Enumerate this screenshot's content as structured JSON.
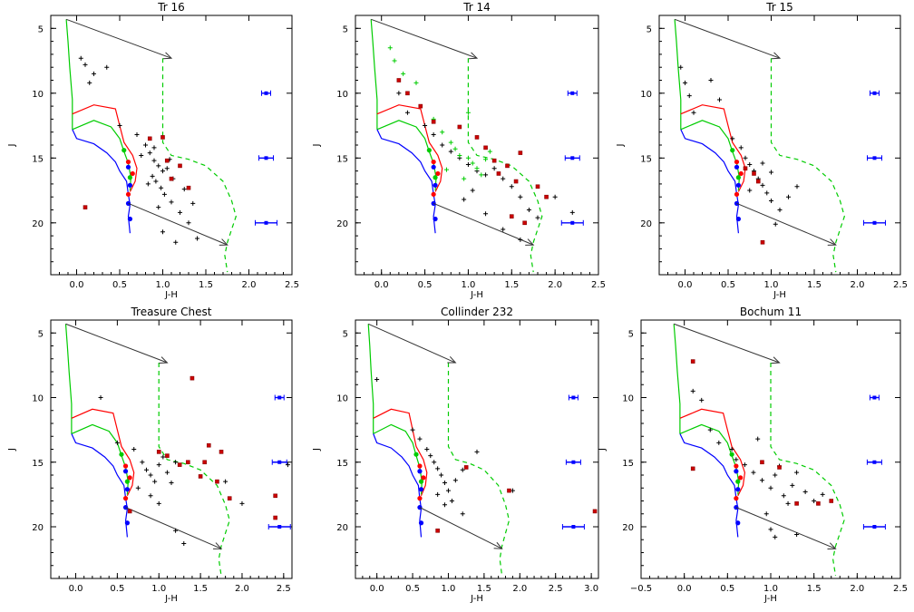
{
  "figure": {
    "panels": [
      {
        "title": "Tr 16"
      },
      {
        "title": "Tr 14"
      },
      {
        "title": "Tr 15"
      },
      {
        "title": "Treasure Chest"
      },
      {
        "title": "Collinder 232"
      },
      {
        "title": "Bochum 11"
      }
    ]
  },
  "colors": {
    "black": "#000000",
    "red": "#ff0000",
    "green": "#00cc00",
    "blue": "#0000ff",
    "dark_red": "#cc0000"
  },
  "chart_data": [
    {
      "type": "scatter",
      "title": "Tr 16",
      "xlabel": "J-H",
      "ylabel": "J",
      "xlim": [
        -0.3,
        2.5
      ],
      "ylim": [
        24,
        4
      ],
      "xticks": [
        "0.0",
        "0.5",
        "1.0",
        "1.5",
        "2.0",
        "2.5"
      ],
      "yticks": [
        "5",
        "10",
        "15",
        "20"
      ],
      "series": [
        {
          "marker": "plus",
          "color": "#000000",
          "points": [
            [
              0.05,
              7.3
            ],
            [
              0.1,
              7.8
            ],
            [
              0.2,
              8.5
            ],
            [
              0.15,
              9.2
            ],
            [
              0.35,
              8.0
            ],
            [
              0.5,
              12.5
            ],
            [
              0.7,
              13.2
            ],
            [
              0.8,
              14.0
            ],
            [
              0.85,
              14.6
            ],
            [
              0.9,
              15.2
            ],
            [
              0.95,
              15.6
            ],
            [
              1.0,
              16.0
            ],
            [
              1.05,
              15.8
            ],
            [
              0.88,
              16.4
            ],
            [
              0.92,
              16.8
            ],
            [
              0.98,
              17.3
            ],
            [
              1.02,
              17.8
            ],
            [
              1.1,
              18.4
            ],
            [
              1.2,
              19.2
            ],
            [
              1.3,
              20.0
            ],
            [
              1.0,
              20.7
            ],
            [
              1.15,
              21.5
            ],
            [
              0.9,
              14.2
            ],
            [
              0.75,
              14.8
            ],
            [
              1.08,
              15.1
            ],
            [
              0.83,
              17.0
            ],
            [
              1.12,
              16.6
            ],
            [
              1.25,
              17.4
            ],
            [
              1.35,
              18.5
            ],
            [
              0.95,
              18.8
            ],
            [
              1.4,
              21.2
            ]
          ]
        },
        {
          "marker": "square",
          "color": "#cc0000",
          "points": [
            [
              0.1,
              18.8
            ],
            [
              0.85,
              13.5
            ],
            [
              1.0,
              13.4
            ],
            [
              1.05,
              15.2
            ],
            [
              1.2,
              15.6
            ],
            [
              1.1,
              16.6
            ],
            [
              1.3,
              17.3
            ]
          ]
        }
      ]
    },
    {
      "type": "scatter",
      "title": "Tr 14",
      "xlabel": "J-H",
      "ylabel": "J",
      "xlim": [
        -0.3,
        2.5
      ],
      "ylim": [
        24,
        4
      ],
      "xticks": [
        "0.0",
        "0.5",
        "1.0",
        "1.5",
        "2.0",
        "2.5"
      ],
      "yticks": [
        "5",
        "10",
        "15",
        "20"
      ],
      "series": [
        {
          "marker": "plus",
          "color": "#000000",
          "points": [
            [
              0.2,
              10.0
            ],
            [
              0.3,
              11.5
            ],
            [
              0.5,
              12.5
            ],
            [
              0.6,
              13.2
            ],
            [
              0.7,
              14.0
            ],
            [
              0.8,
              14.5
            ],
            [
              0.9,
              15.0
            ],
            [
              1.0,
              15.5
            ],
            [
              1.1,
              16.0
            ],
            [
              1.2,
              16.3
            ],
            [
              1.3,
              15.8
            ],
            [
              1.4,
              16.6
            ],
            [
              1.5,
              17.2
            ],
            [
              1.6,
              18.0
            ],
            [
              1.7,
              19.0
            ],
            [
              1.8,
              19.6
            ],
            [
              0.95,
              18.2
            ],
            [
              1.05,
              17.5
            ],
            [
              1.2,
              19.3
            ],
            [
              1.4,
              20.5
            ],
            [
              1.6,
              21.3
            ],
            [
              2.0,
              18.0
            ],
            [
              2.2,
              19.2
            ]
          ]
        },
        {
          "marker": "plus",
          "color": "#00cc00",
          "points": [
            [
              0.1,
              6.5
            ],
            [
              0.15,
              7.5
            ],
            [
              0.25,
              8.5
            ],
            [
              0.4,
              9.2
            ],
            [
              0.6,
              12.0
            ],
            [
              0.7,
              13.0
            ],
            [
              0.8,
              13.8
            ],
            [
              0.85,
              14.3
            ],
            [
              0.9,
              14.8
            ],
            [
              1.0,
              15.0
            ],
            [
              1.05,
              15.4
            ],
            [
              1.1,
              15.8
            ],
            [
              1.15,
              16.3
            ],
            [
              0.95,
              16.6
            ],
            [
              1.2,
              15.1
            ],
            [
              1.25,
              14.5
            ],
            [
              0.75,
              15.9
            ],
            [
              1.0,
              11.5
            ]
          ]
        },
        {
          "marker": "square",
          "color": "#cc0000",
          "points": [
            [
              0.2,
              9.0
            ],
            [
              0.3,
              10.0
            ],
            [
              0.45,
              11.0
            ],
            [
              0.6,
              12.2
            ],
            [
              0.9,
              12.6
            ],
            [
              1.1,
              13.4
            ],
            [
              1.2,
              14.2
            ],
            [
              1.3,
              15.2
            ],
            [
              1.35,
              16.2
            ],
            [
              1.45,
              15.6
            ],
            [
              1.55,
              16.8
            ],
            [
              1.6,
              14.6
            ],
            [
              1.8,
              17.2
            ],
            [
              1.9,
              18.0
            ],
            [
              1.5,
              19.5
            ],
            [
              1.65,
              20.0
            ]
          ]
        }
      ]
    },
    {
      "type": "scatter",
      "title": "Tr 15",
      "xlabel": "J-H",
      "ylabel": "J",
      "xlim": [
        -0.3,
        2.5
      ],
      "ylim": [
        24,
        4
      ],
      "xticks": [
        "0.0",
        "0.5",
        "1.0",
        "1.5",
        "2.0",
        "2.5"
      ],
      "yticks": [
        "5",
        "10",
        "15",
        "20"
      ],
      "series": [
        {
          "marker": "plus",
          "color": "#000000",
          "points": [
            [
              -0.05,
              8.0
            ],
            [
              0.0,
              9.2
            ],
            [
              0.05,
              10.2
            ],
            [
              0.1,
              11.5
            ],
            [
              0.3,
              9.0
            ],
            [
              0.4,
              10.5
            ],
            [
              0.55,
              13.5
            ],
            [
              0.65,
              14.2
            ],
            [
              0.7,
              15.0
            ],
            [
              0.75,
              15.5
            ],
            [
              0.8,
              16.0
            ],
            [
              0.85,
              16.6
            ],
            [
              0.9,
              17.1
            ],
            [
              0.95,
              17.7
            ],
            [
              1.0,
              18.3
            ],
            [
              1.1,
              19.0
            ],
            [
              1.2,
              18.0
            ],
            [
              1.3,
              17.2
            ],
            [
              0.75,
              17.5
            ],
            [
              0.9,
              15.4
            ],
            [
              1.0,
              16.1
            ],
            [
              1.05,
              20.1
            ]
          ]
        },
        {
          "marker": "square",
          "color": "#cc0000",
          "points": [
            [
              0.7,
              15.8
            ],
            [
              0.8,
              16.2
            ],
            [
              0.85,
              16.8
            ],
            [
              0.9,
              21.5
            ]
          ]
        }
      ]
    },
    {
      "type": "scatter",
      "title": "Treasure Chest",
      "xlabel": "J-H",
      "ylabel": "J",
      "xlim": [
        -0.3,
        2.6
      ],
      "ylim": [
        24,
        4
      ],
      "xticks": [
        "0.0",
        "0.5",
        "1.0",
        "1.5",
        "2.0",
        "2.5"
      ],
      "yticks": [
        "5",
        "10",
        "15",
        "20"
      ],
      "series": [
        {
          "marker": "plus",
          "color": "#000000",
          "points": [
            [
              0.3,
              10.0
            ],
            [
              0.5,
              13.5
            ],
            [
              0.7,
              14.0
            ],
            [
              0.8,
              15.0
            ],
            [
              0.85,
              15.6
            ],
            [
              0.9,
              16.0
            ],
            [
              0.95,
              16.5
            ],
            [
              1.0,
              15.2
            ],
            [
              1.05,
              14.6
            ],
            [
              1.1,
              15.8
            ],
            [
              1.15,
              16.6
            ],
            [
              1.2,
              15.0
            ],
            [
              0.75,
              17.0
            ],
            [
              0.9,
              17.6
            ],
            [
              1.0,
              18.2
            ],
            [
              1.2,
              20.3
            ],
            [
              1.3,
              21.3
            ],
            [
              1.8,
              16.5
            ],
            [
              2.0,
              18.2
            ],
            [
              2.55,
              15.2
            ]
          ]
        },
        {
          "marker": "square",
          "color": "#cc0000",
          "points": [
            [
              0.65,
              18.8
            ],
            [
              1.0,
              14.2
            ],
            [
              1.1,
              14.5
            ],
            [
              1.25,
              15.2
            ],
            [
              1.35,
              15.0
            ],
            [
              1.4,
              8.5
            ],
            [
              1.5,
              16.1
            ],
            [
              1.55,
              15.0
            ],
            [
              1.6,
              13.7
            ],
            [
              1.7,
              16.5
            ],
            [
              1.75,
              14.2
            ],
            [
              1.85,
              17.8
            ],
            [
              2.4,
              17.6
            ],
            [
              2.4,
              19.3
            ]
          ]
        }
      ]
    },
    {
      "type": "scatter",
      "title": "Collinder 232",
      "xlabel": "J-H",
      "ylabel": "J",
      "xlim": [
        -0.3,
        3.1
      ],
      "ylim": [
        24,
        4
      ],
      "xticks": [
        "0.0",
        "0.5",
        "1.0",
        "1.5",
        "2.0",
        "2.5",
        "3.0"
      ],
      "yticks": [
        "5",
        "10",
        "15",
        "20"
      ],
      "series": [
        {
          "marker": "plus",
          "color": "#000000",
          "points": [
            [
              0.0,
              8.6
            ],
            [
              0.5,
              12.5
            ],
            [
              0.6,
              13.2
            ],
            [
              0.7,
              14.0
            ],
            [
              0.75,
              14.5
            ],
            [
              0.8,
              15.0
            ],
            [
              0.85,
              15.5
            ],
            [
              0.9,
              16.0
            ],
            [
              0.95,
              16.6
            ],
            [
              1.0,
              17.2
            ],
            [
              1.05,
              18.0
            ],
            [
              1.1,
              16.4
            ],
            [
              1.2,
              15.6
            ],
            [
              0.85,
              17.5
            ],
            [
              0.95,
              18.3
            ],
            [
              1.2,
              19.0
            ],
            [
              1.4,
              14.2
            ],
            [
              1.9,
              17.2
            ]
          ]
        },
        {
          "marker": "square",
          "color": "#cc0000",
          "points": [
            [
              1.25,
              15.4
            ],
            [
              0.85,
              20.3
            ],
            [
              1.85,
              17.2
            ],
            [
              3.05,
              18.8
            ]
          ]
        }
      ]
    },
    {
      "type": "scatter",
      "title": "Bochum 11",
      "xlabel": "J-H",
      "ylabel": "J",
      "xlim": [
        -0.5,
        2.5
      ],
      "ylim": [
        24,
        4
      ],
      "xticks": [
        "−0.5",
        "0.0",
        "0.5",
        "1.0",
        "1.5",
        "2.0",
        "2.5"
      ],
      "yticks": [
        "5",
        "10",
        "15",
        "20"
      ],
      "series": [
        {
          "marker": "plus",
          "color": "#000000",
          "points": [
            [
              0.1,
              9.5
            ],
            [
              0.2,
              10.2
            ],
            [
              0.3,
              12.5
            ],
            [
              0.4,
              13.5
            ],
            [
              0.55,
              14.0
            ],
            [
              0.6,
              14.8
            ],
            [
              0.7,
              15.2
            ],
            [
              0.8,
              15.8
            ],
            [
              0.9,
              16.4
            ],
            [
              1.0,
              17.0
            ],
            [
              1.05,
              16.0
            ],
            [
              1.1,
              15.3
            ],
            [
              1.15,
              17.6
            ],
            [
              1.2,
              18.2
            ],
            [
              1.25,
              16.8
            ],
            [
              1.3,
              15.8
            ],
            [
              1.4,
              17.3
            ],
            [
              1.5,
              18.0
            ],
            [
              1.6,
              17.5
            ],
            [
              0.95,
              19.0
            ],
            [
              1.0,
              20.2
            ],
            [
              1.05,
              20.8
            ],
            [
              1.3,
              20.6
            ],
            [
              0.85,
              13.2
            ]
          ]
        },
        {
          "marker": "square",
          "color": "#cc0000",
          "points": [
            [
              0.1,
              7.2
            ],
            [
              0.1,
              15.5
            ],
            [
              0.9,
              15.0
            ],
            [
              1.1,
              15.4
            ],
            [
              1.3,
              18.2
            ],
            [
              1.55,
              18.2
            ],
            [
              1.7,
              18.0
            ]
          ]
        }
      ]
    }
  ]
}
